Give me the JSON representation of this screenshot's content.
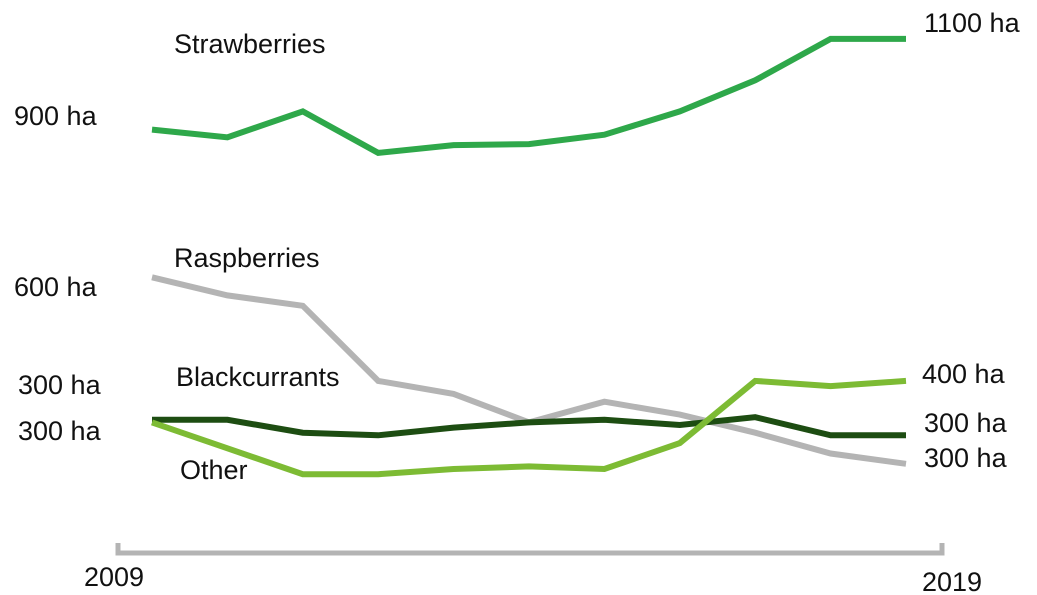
{
  "chart_data": {
    "type": "line",
    "title": "",
    "xlabel": "",
    "ylabel": "",
    "x": [
      2009,
      2010,
      2011,
      2012,
      2013,
      2014,
      2015,
      2016,
      2017,
      2018,
      2019
    ],
    "x_axis": {
      "start_label": "2009",
      "end_label": "2019"
    },
    "ylim": [
      0,
      1150
    ],
    "grid": false,
    "legend": "none",
    "series": [
      {
        "name": "Strawberries",
        "color": "#2ea84a",
        "values": [
          900,
          885,
          935,
          855,
          870,
          872,
          890,
          935,
          995,
          1075,
          1075
        ],
        "start_label": "900 ha",
        "end_label": "1100 ha"
      },
      {
        "name": "Raspberries",
        "color": "#b4b4b4",
        "values": [
          615,
          580,
          560,
          415,
          390,
          335,
          375,
          350,
          315,
          275,
          255
        ],
        "start_label": "600 ha",
        "end_label": "300 ha"
      },
      {
        "name": "Blackcurrants",
        "color": "#1d4d12",
        "values": [
          340,
          340,
          315,
          310,
          325,
          335,
          340,
          330,
          345,
          310,
          310
        ],
        "start_label": "300 ha",
        "end_label": "300 ha"
      },
      {
        "name": "Other",
        "color": "#7dbb34",
        "values": [
          335,
          285,
          235,
          235,
          245,
          250,
          245,
          295,
          415,
          405,
          415
        ],
        "start_label": "300 ha",
        "end_label": "400 ha"
      }
    ]
  }
}
